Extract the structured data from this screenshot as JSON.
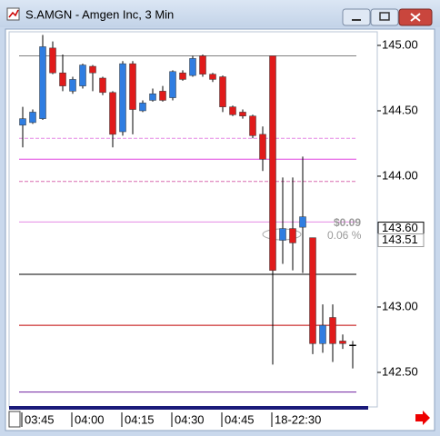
{
  "window": {
    "title": "S.AMGN - Amgen Inc, 3 Min"
  },
  "chart_data": {
    "type": "candlestick",
    "categories": [
      "03:45",
      null,
      null,
      null,
      null,
      "04:00",
      null,
      null,
      null,
      null,
      "04:15",
      null,
      null,
      null,
      null,
      "04:30",
      null,
      null,
      null,
      null,
      "04:45",
      null,
      null,
      null,
      null,
      "18-22:30",
      null,
      null,
      null,
      null,
      null,
      null,
      null,
      null
    ],
    "open": [
      144.39,
      144.41,
      144.44,
      144.98,
      144.79,
      144.65,
      144.69,
      144.84,
      144.75,
      144.64,
      144.34,
      144.86,
      144.5,
      144.58,
      144.65,
      144.6,
      144.79,
      144.77,
      144.92,
      144.78,
      144.76,
      144.53,
      144.49,
      144.46,
      144.32,
      144.92,
      143.51,
      143.6,
      143.61,
      143.53,
      142.72,
      142.92,
      142.74,
      142.71
    ],
    "high": [
      144.53,
      144.51,
      145.08,
      145.03,
      144.93,
      144.76,
      144.86,
      144.85,
      144.76,
      144.65,
      144.88,
      144.88,
      144.58,
      144.67,
      144.69,
      144.81,
      144.81,
      144.92,
      144.93,
      144.79,
      144.77,
      144.54,
      144.51,
      144.47,
      144.38,
      144.92,
      143.99,
      143.99,
      144.15,
      143.53,
      143.02,
      143.02,
      142.79,
      142.74
    ],
    "low": [
      144.22,
      144.4,
      144.43,
      144.78,
      144.65,
      144.63,
      144.67,
      144.65,
      144.62,
      144.22,
      144.31,
      144.32,
      144.49,
      144.57,
      144.57,
      144.58,
      144.73,
      144.76,
      144.76,
      144.72,
      144.49,
      144.46,
      144.44,
      144.29,
      144.04,
      142.56,
      143.33,
      143.28,
      143.26,
      142.64,
      142.65,
      142.58,
      142.68,
      142.53
    ],
    "close": [
      144.44,
      144.49,
      144.99,
      144.79,
      144.69,
      144.74,
      144.85,
      144.79,
      144.64,
      144.32,
      144.86,
      144.51,
      144.56,
      144.63,
      144.58,
      144.8,
      144.74,
      144.9,
      144.78,
      144.74,
      144.53,
      144.47,
      144.46,
      144.31,
      144.13,
      143.28,
      143.6,
      143.49,
      143.69,
      142.72,
      142.86,
      142.72,
      142.72,
      142.71
    ],
    "up_color": "#2f7de1",
    "down_color": "#e01b1b",
    "flat_color": "#000000",
    "ylim": [
      142.236,
      145.104
    ],
    "yticks": [
      {
        "value": 142.5,
        "label": "142.50"
      },
      {
        "value": 143,
        "label": "143.00"
      },
      {
        "value": 144,
        "label": "144.00"
      },
      {
        "value": 144.5,
        "label": "144.50"
      },
      {
        "value": 145,
        "label": "145.00"
      }
    ],
    "levels": [
      {
        "value": 144.92,
        "color": "#808080",
        "dash": false
      },
      {
        "value": 144.29,
        "color": "#e58ae5",
        "dash": true
      },
      {
        "value": 144.13,
        "color": "#e040e0",
        "dash": false
      },
      {
        "value": 143.96,
        "color": "#d86ab0",
        "dash": true
      },
      {
        "value": 143.65,
        "color": "#e58ae5",
        "dash": false
      },
      {
        "value": 143.25,
        "color": "#000000",
        "dash": false
      },
      {
        "value": 142.86,
        "color": "#c00000",
        "dash": false
      },
      {
        "value": 142.35,
        "color": "#7020a0",
        "dash": false
      }
    ],
    "price_labels": [
      {
        "value": 143.6,
        "label": "143.60"
      },
      {
        "value": 143.51,
        "label": "143.51"
      }
    ],
    "annotations": [
      "$0.09",
      "0.06 %"
    ]
  }
}
